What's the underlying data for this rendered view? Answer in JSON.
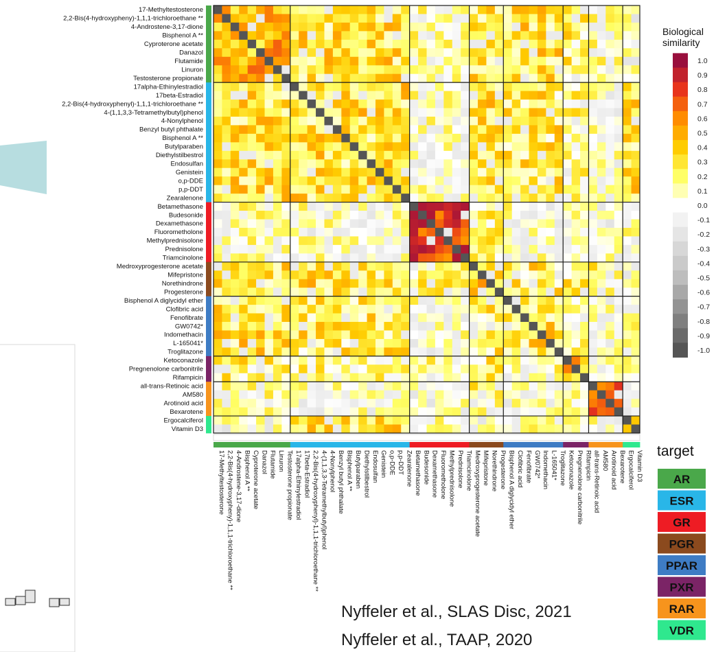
{
  "chart_data": {
    "type": "heatmap",
    "rows": [
      {
        "name": "17-Methyltestosterone",
        "target": "AR"
      },
      {
        "name": "2,2-Bis(4-hydroxypheny)-1,1,1-trichloroethane **",
        "target": "AR"
      },
      {
        "name": "4-Androstene-3,17-dione",
        "target": "AR"
      },
      {
        "name": "Bisphenol A **",
        "target": "AR"
      },
      {
        "name": "Cyproterone acetate",
        "target": "AR"
      },
      {
        "name": "Danazol",
        "target": "AR"
      },
      {
        "name": "Flutamide",
        "target": "AR"
      },
      {
        "name": "Linuron",
        "target": "AR"
      },
      {
        "name": "Testosterone propionate",
        "target": "AR"
      },
      {
        "name": "17alpha-Ethinylestradiol",
        "target": "ESR"
      },
      {
        "name": "17beta-Estradiol",
        "target": "ESR"
      },
      {
        "name": "2,2-Bis(4-hydroxyphenyl)-1,1,1-trichloroethane **",
        "target": "ESR"
      },
      {
        "name": "4-(1,1,3,3-Tetramethylbutyl)phenol",
        "target": "ESR"
      },
      {
        "name": "4-Nonylphenol",
        "target": "ESR"
      },
      {
        "name": "Benzyl butyl phthalate",
        "target": "ESR"
      },
      {
        "name": "Bisphenol A **",
        "target": "ESR"
      },
      {
        "name": "Butylparaben",
        "target": "ESR"
      },
      {
        "name": "Diethylstilbestrol",
        "target": "ESR"
      },
      {
        "name": "Endosulfan",
        "target": "ESR"
      },
      {
        "name": "Genistein",
        "target": "ESR"
      },
      {
        "name": "o,p-DDE",
        "target": "ESR"
      },
      {
        "name": "p,p-DDT",
        "target": "ESR"
      },
      {
        "name": "Zearalenone",
        "target": "ESR"
      },
      {
        "name": "Betamethasone",
        "target": "GR"
      },
      {
        "name": "Budesonide",
        "target": "GR"
      },
      {
        "name": "Dexamethasone",
        "target": "GR"
      },
      {
        "name": "Fluorometholone",
        "target": "GR"
      },
      {
        "name": "Methylprednisolone",
        "target": "GR"
      },
      {
        "name": "Prednisolone",
        "target": "GR"
      },
      {
        "name": "Triamcinolone",
        "target": "GR"
      },
      {
        "name": "Medroxyprogesterone acetate",
        "target": "PGR"
      },
      {
        "name": "Mifepristone",
        "target": "PGR"
      },
      {
        "name": "Norethindrone",
        "target": "PGR"
      },
      {
        "name": "Progesterone",
        "target": "PGR"
      },
      {
        "name": "Bisphenol A diglycidyl ether",
        "target": "PPAR"
      },
      {
        "name": "Clofibric acid",
        "target": "PPAR"
      },
      {
        "name": "Fenofibrate",
        "target": "PPAR"
      },
      {
        "name": "GW0742*",
        "target": "PPAR"
      },
      {
        "name": "Indomethacin",
        "target": "PPAR"
      },
      {
        "name": "L-165041*",
        "target": "PPAR"
      },
      {
        "name": "Troglitazone",
        "target": "PPAR"
      },
      {
        "name": "Ketoconazole",
        "target": "PXR"
      },
      {
        "name": "Pregnenolone carbonitrile",
        "target": "PXR"
      },
      {
        "name": "Rifampicin",
        "target": "PXR"
      },
      {
        "name": "all-trans-Retinoic acid",
        "target": "RAR"
      },
      {
        "name": "AM580",
        "target": "RAR"
      },
      {
        "name": "Arotinoid acid",
        "target": "RAR"
      },
      {
        "name": "Bexarotene",
        "target": "RAR"
      },
      {
        "name": "Ergocalciferol",
        "target": "VDR"
      },
      {
        "name": "Vitamin D3",
        "target": "VDR"
      }
    ],
    "groups": [
      {
        "name": "AR",
        "color": "#4aa84a"
      },
      {
        "name": "ESR",
        "color": "#29b6e8"
      },
      {
        "name": "GR",
        "color": "#ee1c24"
      },
      {
        "name": "PGR",
        "color": "#8b4a1e"
      },
      {
        "name": "PPAR",
        "color": "#3e7cc4"
      },
      {
        "name": "PXR",
        "color": "#7b2466"
      },
      {
        "name": "RAR",
        "color": "#f7941d"
      },
      {
        "name": "VDR",
        "color": "#2fe88e"
      }
    ],
    "colorbar": {
      "title": "Biological\nsimilarity",
      "ticks": [
        "1.0",
        "0.9",
        "0.8",
        "0.7",
        "0.6",
        "0.5",
        "0.4",
        "0.3",
        "0.2",
        "0.1",
        "0.0",
        "-0.1",
        "-0.2",
        "-0.3",
        "-0.4",
        "-0.5",
        "-0.6",
        "-0.7",
        "-0.8",
        "-0.9",
        "-1.0"
      ],
      "range": [
        -1.0,
        1.0
      ],
      "colors_high": [
        "#ffffff",
        "#ffff66",
        "#ffcc00",
        "#ff8c00",
        "#e8341c",
        "#990f3d"
      ],
      "colors_low": [
        "#ffffff",
        "#bdbdbd",
        "#555555"
      ]
    },
    "block_similarity": [
      [
        0.45,
        0.3,
        0.1,
        0.3,
        0.3,
        0.2,
        0.1,
        0.0
      ],
      [
        0.3,
        0.3,
        0.05,
        0.3,
        0.25,
        0.15,
        0.05,
        0.3
      ],
      [
        0.1,
        0.05,
        0.8,
        0.15,
        0.05,
        0.1,
        0.0,
        0.05
      ],
      [
        0.3,
        0.3,
        0.15,
        0.35,
        0.25,
        0.2,
        0.15,
        0.05
      ],
      [
        0.3,
        0.25,
        0.05,
        0.25,
        0.3,
        0.1,
        0.05,
        0.05
      ],
      [
        0.2,
        0.15,
        0.1,
        0.2,
        0.1,
        0.4,
        0.1,
        0.05
      ],
      [
        0.1,
        0.05,
        0.0,
        0.15,
        0.05,
        0.1,
        0.75,
        0.05
      ],
      [
        0.0,
        0.3,
        0.05,
        0.05,
        0.05,
        0.05,
        0.05,
        0.5
      ]
    ],
    "legend_title": "target",
    "legend_placement": "right",
    "colorbar_placement": "top-right"
  },
  "citations": [
    "Nyffeler et al., SLAS Disc, 2021",
    "Nyffeler et al., TAAP, 2020"
  ]
}
